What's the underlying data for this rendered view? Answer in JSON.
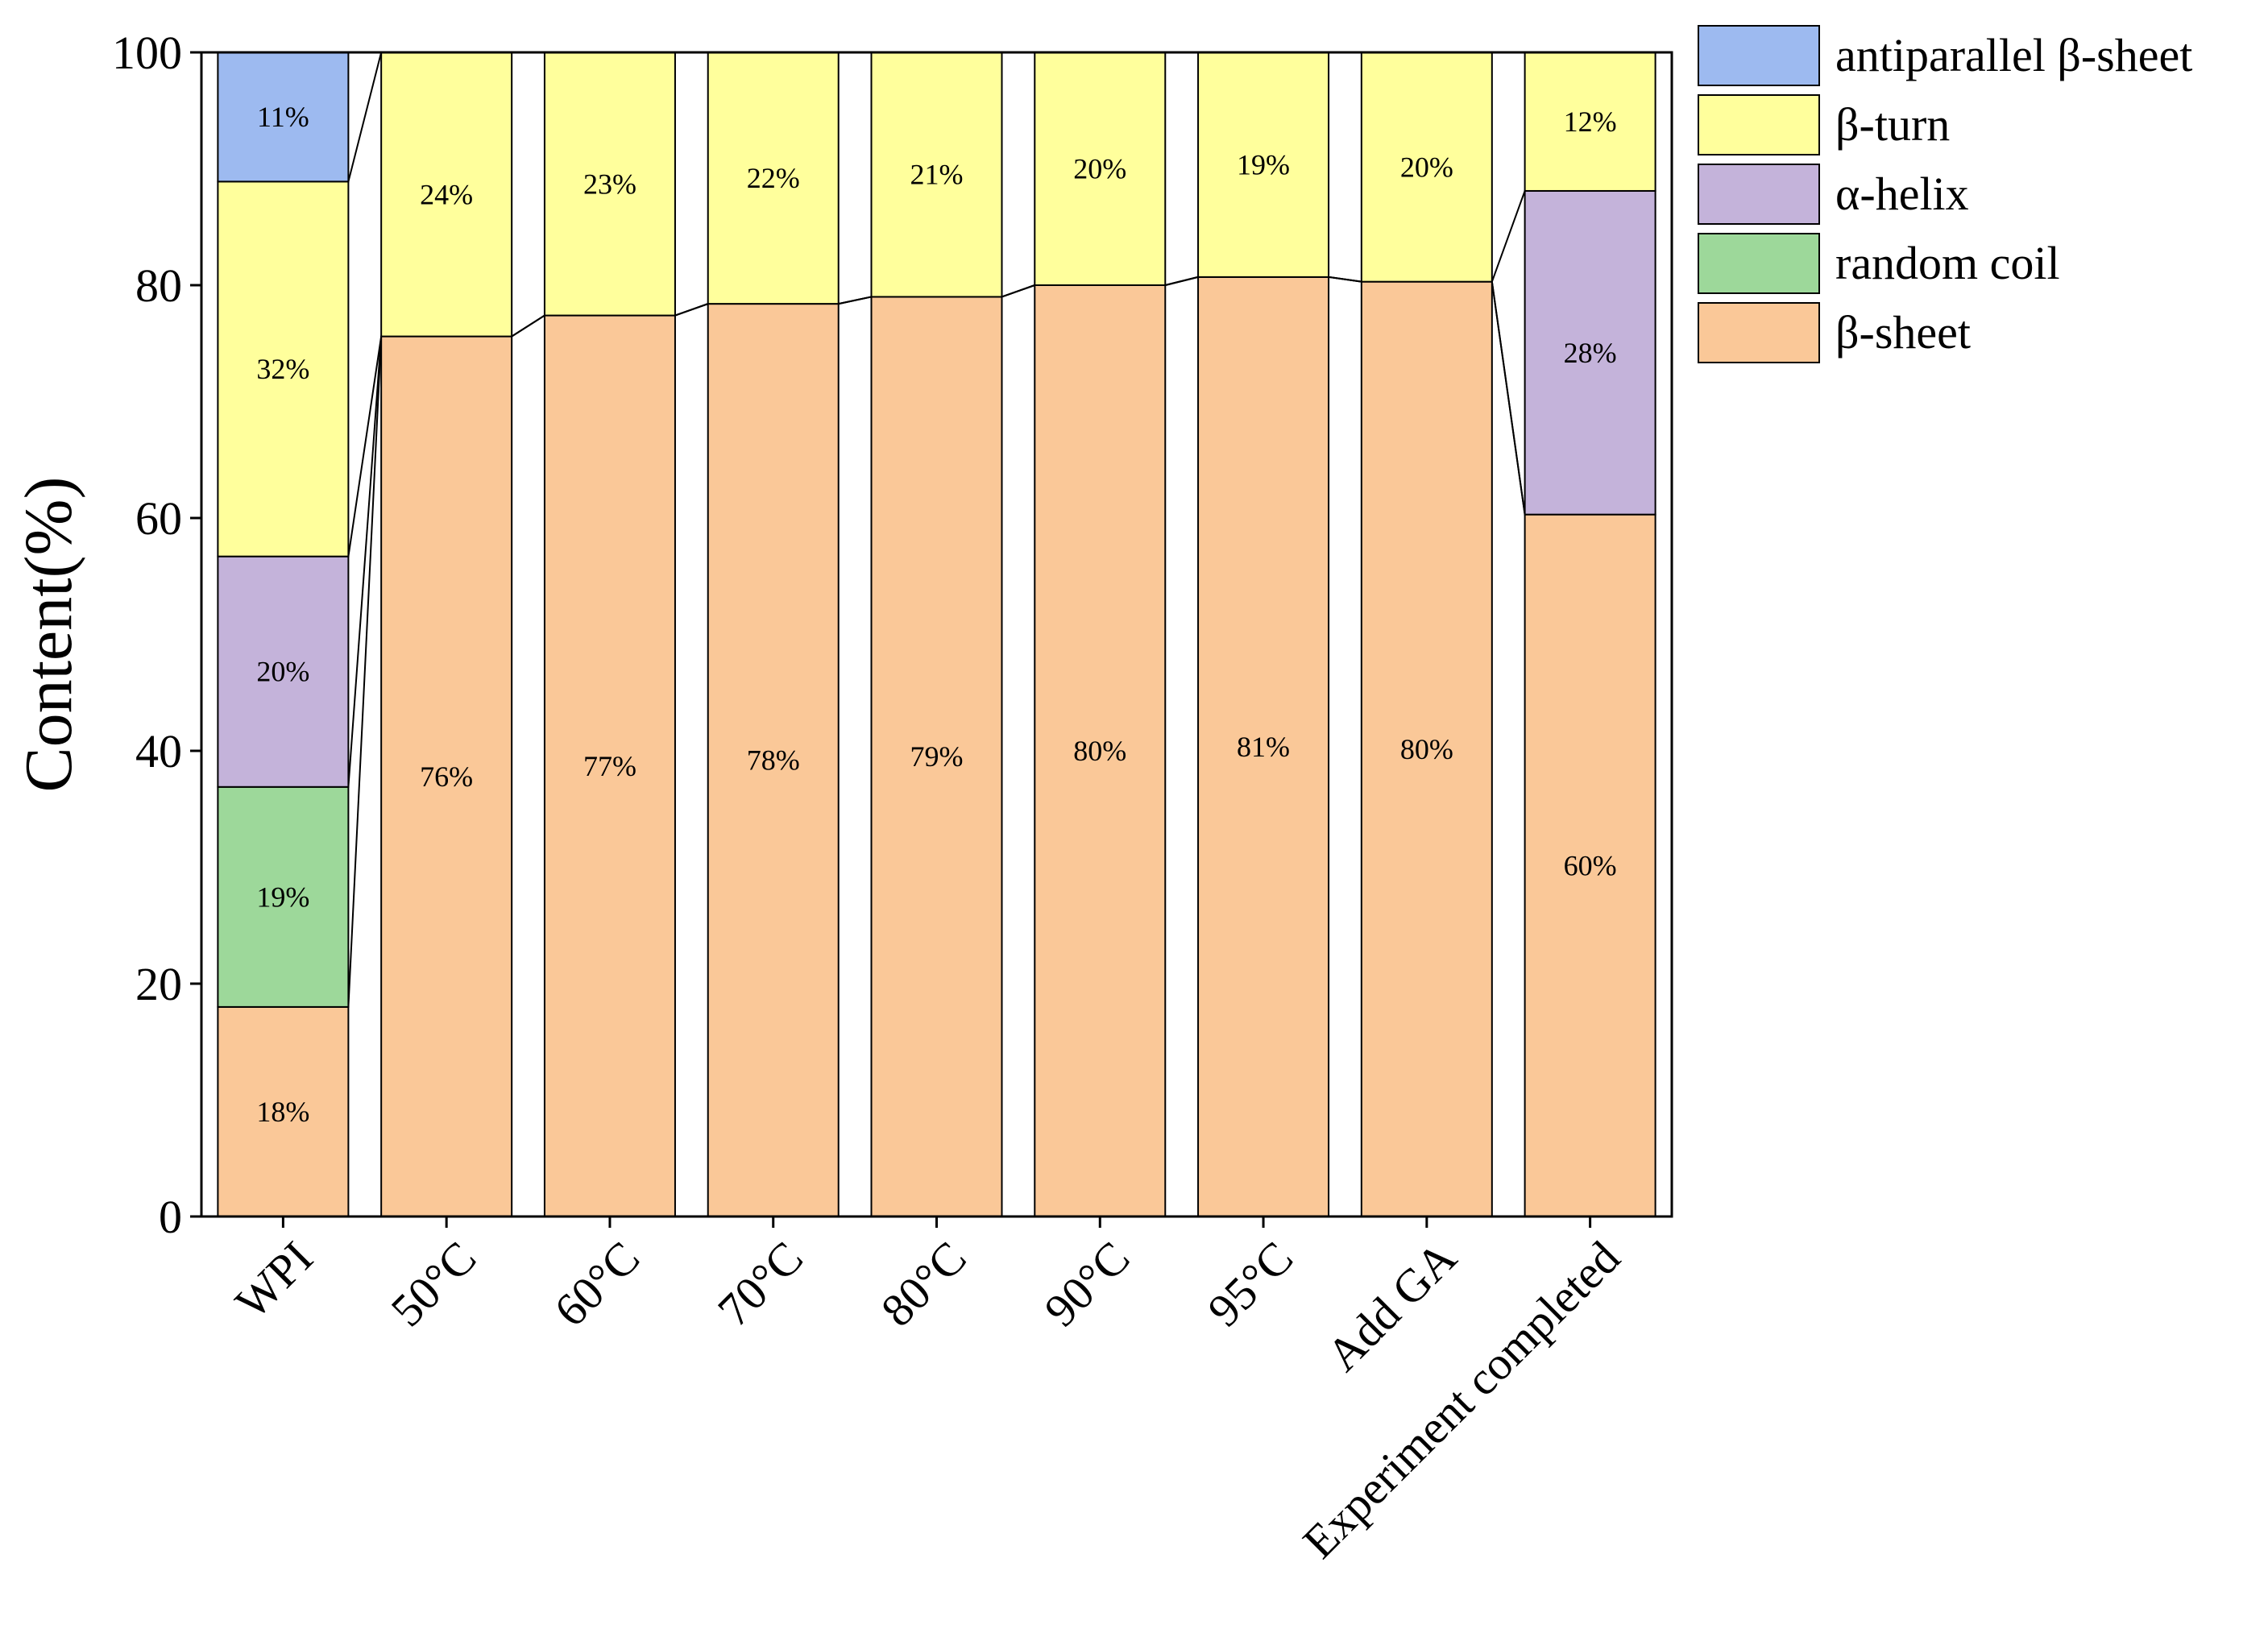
{
  "chart_data": {
    "type": "bar",
    "stacked": true,
    "ylabel": "Content(%)",
    "xlabel": "",
    "ylim": [
      0,
      100
    ],
    "yticks": [
      0,
      20,
      40,
      60,
      80,
      100
    ],
    "grid": false,
    "legend_position": "top-right, outside plot",
    "categories": [
      "WPI",
      "50°C",
      "60°C",
      "70°C",
      "80°C",
      "90°C",
      "95°C",
      "Add GA",
      "Experiment completed"
    ],
    "series": [
      {
        "name": "β-sheet",
        "color": "#FAC898",
        "values": [
          18,
          75.6,
          77.4,
          78.4,
          79,
          80,
          80.7,
          80.3,
          60.3
        ],
        "labels": [
          "18%",
          "76%",
          "77%",
          "78%",
          "79%",
          "80%",
          "81%",
          "80%",
          "60%"
        ]
      },
      {
        "name": "random coil",
        "color": "#9DD89A",
        "values": [
          18.9,
          0,
          0,
          0,
          0,
          0,
          0,
          0,
          0
        ],
        "labels": [
          "19%",
          "",
          "",
          "",
          "",
          "",
          "",
          "",
          ""
        ]
      },
      {
        "name": "α-helix",
        "color": "#C4B3DA",
        "values": [
          19.8,
          0,
          0,
          0,
          0,
          0,
          0,
          0,
          27.8
        ],
        "labels": [
          "20%",
          "",
          "",
          "",
          "",
          "",
          "",
          "",
          "28%"
        ]
      },
      {
        "name": "β-turn",
        "color": "#FFFF9C",
        "values": [
          32.2,
          24.4,
          22.6,
          21.6,
          21,
          20,
          19.3,
          19.7,
          11.9
        ],
        "labels": [
          "32%",
          "24%",
          "23%",
          "22%",
          "21%",
          "20%",
          "19%",
          "20%",
          "12%"
        ]
      },
      {
        "name": "antiparallel β-sheet",
        "color": "#9DBAF0",
        "values": [
          11.1,
          0,
          0,
          0,
          0,
          0,
          0,
          0,
          0
        ],
        "labels": [
          "11%",
          "",
          "",
          "",
          "",
          "",
          "",
          "",
          ""
        ]
      }
    ],
    "legend_order": [
      "antiparallel β-sheet",
      "β-turn",
      "α-helix",
      "random coil",
      "β-sheet"
    ]
  }
}
